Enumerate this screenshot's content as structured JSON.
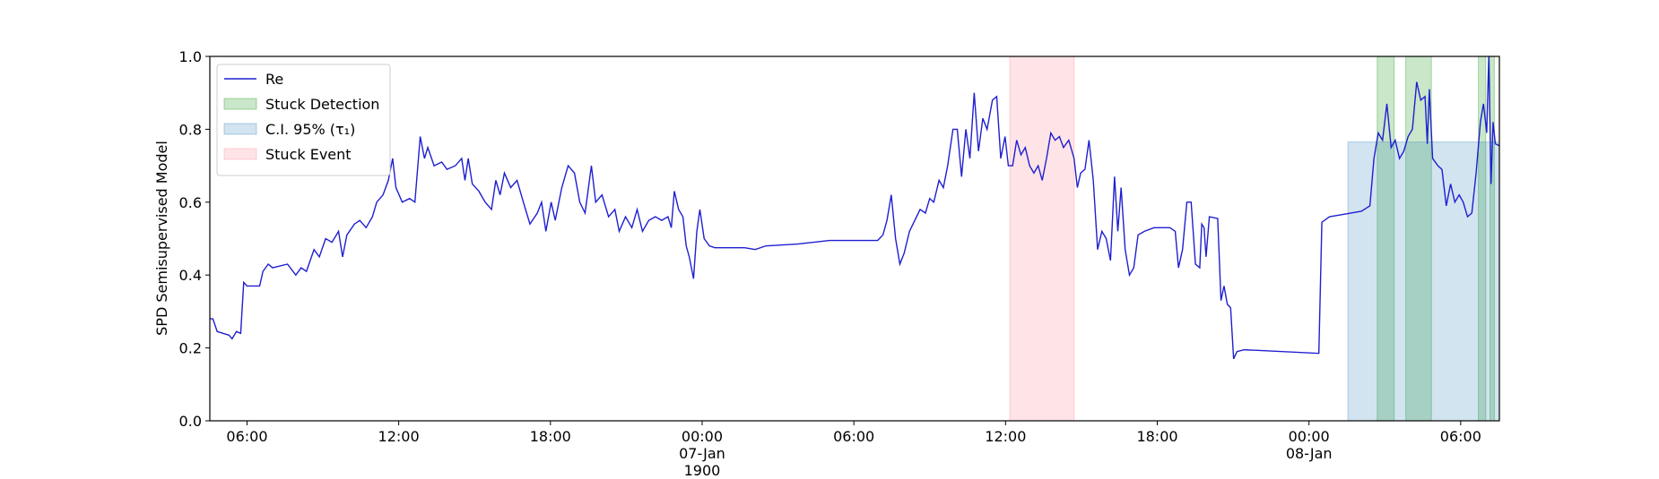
{
  "chart_data": {
    "type": "line",
    "ylabel": "SPD Semisupervised Model",
    "xlim": [
      4.53,
      55.53
    ],
    "ylim": [
      0,
      1
    ],
    "xticks": [
      {
        "value": 6,
        "label": "06:00"
      },
      {
        "value": 12,
        "label": "12:00"
      },
      {
        "value": 18,
        "label": "18:00"
      },
      {
        "value": 24,
        "label": "00:00\n07-Jan\n1900"
      },
      {
        "value": 30,
        "label": "06:00"
      },
      {
        "value": 36,
        "label": "12:00"
      },
      {
        "value": 42,
        "label": "18:00"
      },
      {
        "value": 48,
        "label": "00:00\n08-Jan"
      },
      {
        "value": 54,
        "label": "06:00"
      }
    ],
    "yticks": [
      {
        "value": 0,
        "label": "0.0"
      },
      {
        "value": 0.2,
        "label": "0.2"
      },
      {
        "value": 0.4,
        "label": "0.4"
      },
      {
        "value": 0.6,
        "label": "0.6"
      },
      {
        "value": 0.8,
        "label": "0.8"
      },
      {
        "value": 1,
        "label": "1.0"
      }
    ],
    "legend": "upper left",
    "x": [
      4.53,
      4.65,
      4.82,
      5.29,
      5.41,
      5.58,
      5.75,
      5.87,
      6.0,
      6.5,
      6.63,
      6.84,
      7.01,
      7.6,
      7.93,
      8.14,
      8.35,
      8.65,
      8.86,
      9.11,
      9.36,
      9.62,
      9.78,
      9.95,
      10.25,
      10.46,
      10.71,
      10.96,
      11.13,
      11.38,
      11.59,
      11.76,
      11.89,
      12.14,
      12.43,
      12.64,
      12.85,
      13.02,
      13.15,
      13.4,
      13.7,
      13.91,
      14.24,
      14.49,
      14.62,
      14.75,
      14.91,
      15.17,
      15.42,
      15.67,
      15.84,
      16.01,
      16.18,
      16.43,
      16.68,
      16.93,
      17.19,
      17.48,
      17.65,
      17.82,
      18.03,
      18.19,
      18.45,
      18.7,
      18.95,
      19.16,
      19.37,
      19.62,
      19.79,
      20.04,
      20.3,
      20.55,
      20.72,
      20.97,
      21.22,
      21.43,
      21.64,
      21.89,
      22.15,
      22.4,
      22.65,
      22.78,
      22.9,
      23.07,
      23.24,
      23.37,
      23.49,
      23.66,
      23.79,
      23.91,
      24.08,
      24.29,
      24.5,
      25.68,
      26.1,
      26.52,
      27.78,
      29.04,
      30.94,
      31.15,
      31.31,
      31.48,
      31.65,
      31.82,
      31.99,
      32.2,
      32.41,
      32.62,
      32.83,
      33.0,
      33.16,
      33.37,
      33.54,
      33.71,
      33.92,
      34.09,
      34.26,
      34.43,
      34.59,
      34.76,
      34.93,
      35.1,
      35.27,
      35.48,
      35.65,
      35.81,
      35.98,
      36.11,
      36.28,
      36.44,
      36.61,
      36.78,
      36.95,
      37.12,
      37.29,
      37.45,
      37.62,
      37.79,
      37.96,
      38.13,
      38.29,
      38.5,
      38.71,
      38.84,
      38.97,
      39.14,
      39.3,
      39.47,
      39.64,
      39.81,
      39.98,
      40.15,
      40.31,
      40.44,
      40.57,
      40.73,
      40.9,
      41.07,
      41.24,
      41.49,
      41.87,
      42.5,
      42.71,
      42.84,
      43.0,
      43.17,
      43.34,
      43.51,
      43.68,
      43.76,
      43.85,
      43.93,
      44.06,
      44.39,
      44.52,
      44.64,
      44.77,
      44.9,
      45.02,
      45.15,
      45.44,
      48.39,
      48.51,
      48.81,
      49.23,
      50.07,
      50.41,
      50.57,
      50.74,
      50.91,
      51.08,
      51.25,
      51.41,
      51.58,
      51.75,
      51.92,
      52.09,
      52.26,
      52.42,
      52.59,
      52.68,
      52.76,
      52.89,
      53.1,
      53.26,
      53.43,
      53.6,
      53.77,
      53.94,
      54.1,
      54.27,
      54.44,
      54.61,
      54.78,
      54.9,
      55.03,
      55.11,
      55.2,
      55.28,
      55.37,
      55.53
    ],
    "series": [
      {
        "name": "Re",
        "color": "#1f1fd0",
        "values": [
          0.28,
          0.28,
          0.245,
          0.235,
          0.225,
          0.245,
          0.24,
          0.38,
          0.37,
          0.37,
          0.41,
          0.43,
          0.42,
          0.43,
          0.4,
          0.42,
          0.41,
          0.47,
          0.45,
          0.5,
          0.49,
          0.52,
          0.45,
          0.51,
          0.54,
          0.55,
          0.53,
          0.56,
          0.6,
          0.62,
          0.66,
          0.72,
          0.64,
          0.6,
          0.61,
          0.6,
          0.78,
          0.72,
          0.75,
          0.7,
          0.71,
          0.69,
          0.7,
          0.72,
          0.66,
          0.72,
          0.65,
          0.63,
          0.6,
          0.58,
          0.66,
          0.62,
          0.68,
          0.64,
          0.66,
          0.6,
          0.54,
          0.57,
          0.6,
          0.52,
          0.6,
          0.55,
          0.64,
          0.7,
          0.68,
          0.6,
          0.57,
          0.7,
          0.6,
          0.62,
          0.56,
          0.58,
          0.52,
          0.56,
          0.53,
          0.58,
          0.52,
          0.55,
          0.56,
          0.55,
          0.56,
          0.53,
          0.63,
          0.58,
          0.56,
          0.48,
          0.45,
          0.39,
          0.52,
          0.58,
          0.5,
          0.48,
          0.475,
          0.475,
          0.47,
          0.48,
          0.485,
          0.495,
          0.495,
          0.51,
          0.55,
          0.62,
          0.5,
          0.43,
          0.46,
          0.52,
          0.55,
          0.58,
          0.57,
          0.61,
          0.6,
          0.66,
          0.64,
          0.7,
          0.8,
          0.8,
          0.67,
          0.8,
          0.72,
          0.9,
          0.74,
          0.83,
          0.8,
          0.88,
          0.89,
          0.72,
          0.78,
          0.7,
          0.7,
          0.77,
          0.73,
          0.75,
          0.7,
          0.68,
          0.7,
          0.66,
          0.72,
          0.79,
          0.77,
          0.78,
          0.75,
          0.77,
          0.72,
          0.64,
          0.68,
          0.69,
          0.77,
          0.66,
          0.47,
          0.52,
          0.5,
          0.44,
          0.67,
          0.52,
          0.64,
          0.47,
          0.4,
          0.42,
          0.51,
          0.52,
          0.53,
          0.53,
          0.52,
          0.42,
          0.47,
          0.6,
          0.6,
          0.43,
          0.42,
          0.54,
          0.53,
          0.45,
          0.56,
          0.555,
          0.33,
          0.37,
          0.32,
          0.31,
          0.17,
          0.19,
          0.195,
          0.185,
          0.545,
          0.56,
          0.565,
          0.575,
          0.59,
          0.72,
          0.79,
          0.77,
          0.87,
          0.75,
          0.77,
          0.72,
          0.74,
          0.78,
          0.8,
          0.93,
          0.88,
          0.89,
          0.76,
          0.91,
          0.72,
          0.7,
          0.69,
          0.59,
          0.65,
          0.6,
          0.62,
          0.6,
          0.56,
          0.57,
          0.68,
          0.82,
          0.87,
          0.79,
          1.0,
          0.65,
          0.82,
          0.76,
          0.755
        ]
      }
    ],
    "spans": [
      {
        "name": "Stuck Detection",
        "color": "#2ca02c",
        "alpha": 0.25,
        "ranges": [
          [
            50.7,
            51.37
          ],
          [
            51.83,
            52.84
          ],
          [
            54.7,
            54.99
          ],
          [
            55.16,
            55.33
          ]
        ]
      },
      {
        "name": "C.I. 95% (τ₁)",
        "color": "#1f77b4",
        "alpha": 0.2,
        "ymax": 0.765,
        "ranges": [
          [
            49.54,
            55.53
          ]
        ]
      },
      {
        "name": "Stuck Event",
        "color": "#ff4d5e",
        "alpha": 0.15,
        "ranges": [
          [
            36.17,
            38.71
          ]
        ]
      }
    ]
  }
}
